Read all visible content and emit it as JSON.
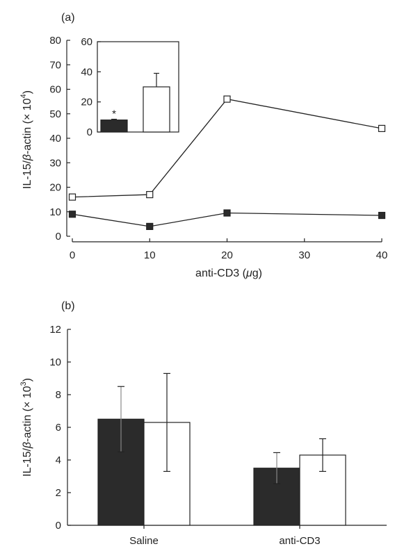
{
  "colors": {
    "filled": "#2b2b2b",
    "open": "#ffffff",
    "stroke": "#222222"
  },
  "panels": {
    "a": {
      "label": "(a)",
      "x_title": "anti-CD3 (",
      "x_mu": "μ",
      "x_unit": "g)",
      "y_title_main": "IL-15/",
      "y_title_beta": "β",
      "y_title_actin": "-actin (× 10",
      "y_title_exp": "4",
      "y_title_close": ")"
    },
    "b": {
      "label": "(b)",
      "y_title_main": "IL-15/",
      "y_title_beta": "β",
      "y_title_actin": "-actin (× 10",
      "y_title_exp": "3",
      "y_title_close": ")"
    }
  },
  "chart_data": [
    {
      "id": "a-main",
      "type": "line",
      "x": [
        0,
        10,
        20,
        40
      ],
      "xticks": [
        0,
        10,
        20,
        30,
        40
      ],
      "xlim": [
        0,
        40
      ],
      "ylim": [
        0,
        80
      ],
      "yticks": [
        0,
        10,
        20,
        30,
        40,
        50,
        60,
        70,
        80
      ],
      "series": [
        {
          "marker": "open-square",
          "values": [
            16,
            17,
            56,
            44
          ]
        },
        {
          "marker": "filled-square",
          "values": [
            9,
            4,
            9.5,
            8.5
          ]
        }
      ]
    },
    {
      "id": "a-inset",
      "type": "bar",
      "ylim": [
        0,
        60
      ],
      "yticks": [
        0,
        20,
        40,
        60
      ],
      "bars": [
        {
          "fill": "filled",
          "value": 8,
          "error": 0.5,
          "annotation": "*"
        },
        {
          "fill": "open",
          "value": 30,
          "error": 9
        }
      ]
    },
    {
      "id": "b",
      "type": "bar",
      "categories": [
        "Saline",
        "anti-CD3"
      ],
      "ylim": [
        0,
        12
      ],
      "yticks": [
        0,
        2,
        4,
        6,
        8,
        10,
        12
      ],
      "series": [
        {
          "fill": "filled",
          "values": [
            6.5,
            3.5
          ],
          "errors": [
            2.0,
            0.95
          ]
        },
        {
          "fill": "open",
          "values": [
            6.3,
            4.3
          ],
          "errors": [
            3.0,
            1.0
          ]
        }
      ]
    }
  ]
}
